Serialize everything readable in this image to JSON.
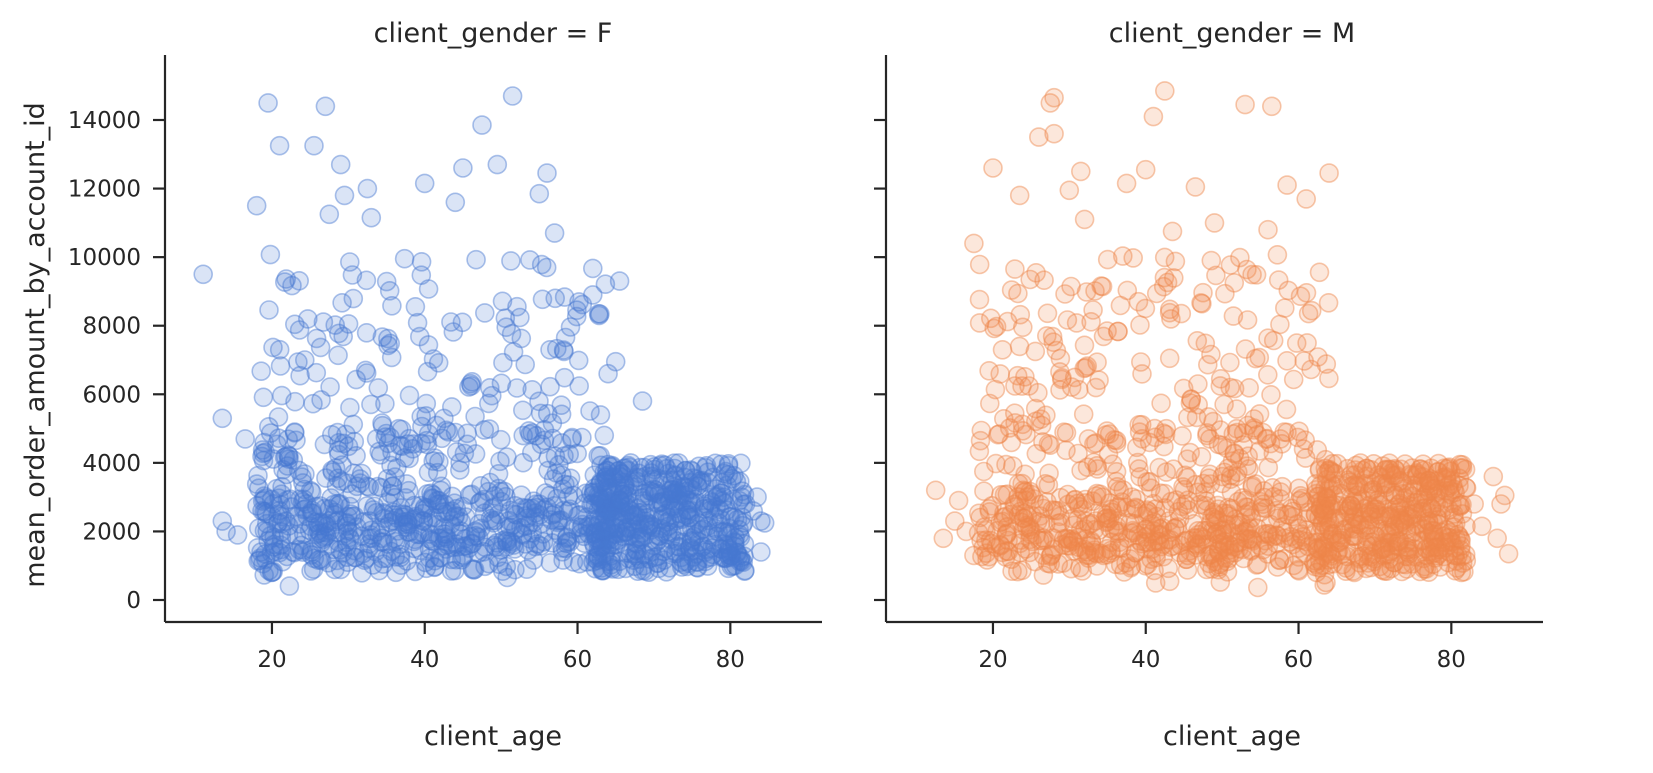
{
  "chart_data": {
    "type": "scatter",
    "xlabel": "client_age",
    "ylabel": "mean_order_amount_by_account_id",
    "xlim": [
      6,
      92
    ],
    "ylim": [
      -600,
      15800
    ],
    "xticks": [
      20,
      40,
      60,
      80
    ],
    "yticks": [
      0,
      2000,
      4000,
      6000,
      8000,
      10000,
      12000,
      14000
    ],
    "facet_variable": "client_gender",
    "panels": [
      {
        "title": "client_gender = F",
        "name": "F",
        "color": "#4878d0",
        "generated_points": 1250,
        "notable_points": [
          [
            11,
            9500
          ],
          [
            19.5,
            14500
          ],
          [
            21,
            13250
          ],
          [
            25.5,
            13250
          ],
          [
            27,
            14400
          ],
          [
            29,
            12700
          ],
          [
            32.5,
            12000
          ],
          [
            33,
            11150
          ],
          [
            29.5,
            11800
          ],
          [
            27.5,
            11250
          ],
          [
            18,
            11500
          ],
          [
            40,
            12150
          ],
          [
            44,
            11600
          ],
          [
            45,
            12600
          ],
          [
            47.5,
            13850
          ],
          [
            49.5,
            12700
          ],
          [
            51.5,
            14700
          ],
          [
            56,
            12450
          ],
          [
            55,
            11850
          ],
          [
            57,
            10700
          ],
          [
            13.5,
            5300
          ],
          [
            13.5,
            2300
          ],
          [
            14,
            2000
          ],
          [
            15.5,
            1900
          ],
          [
            16.5,
            4700
          ],
          [
            63,
            5400
          ],
          [
            63.5,
            4800
          ],
          [
            64,
            6600
          ],
          [
            65,
            6950
          ],
          [
            68.5,
            5800
          ],
          [
            65.5,
            9300
          ],
          [
            62,
            8900
          ],
          [
            84,
            2300
          ],
          [
            84.5,
            2250
          ],
          [
            83.5,
            3000
          ],
          [
            84,
            1400
          ],
          [
            82,
            2800
          ],
          [
            83,
            2600
          ]
        ]
      },
      {
        "title": "client_gender = M",
        "name": "M",
        "color": "#ee854a",
        "generated_points": 1250,
        "notable_points": [
          [
            27.5,
            14500
          ],
          [
            28,
            14650
          ],
          [
            26,
            13500
          ],
          [
            28,
            13600
          ],
          [
            42.5,
            14850
          ],
          [
            41,
            14100
          ],
          [
            53,
            14450
          ],
          [
            56.5,
            14400
          ],
          [
            20,
            12600
          ],
          [
            23.5,
            11800
          ],
          [
            30,
            11950
          ],
          [
            31.5,
            12500
          ],
          [
            37.5,
            12150
          ],
          [
            40,
            12550
          ],
          [
            46.5,
            12050
          ],
          [
            58.5,
            12100
          ],
          [
            61,
            11700
          ],
          [
            64,
            12450
          ],
          [
            32,
            11100
          ],
          [
            43.5,
            10750
          ],
          [
            49,
            11000
          ],
          [
            56,
            10800
          ],
          [
            17.5,
            10400
          ],
          [
            12.5,
            3200
          ],
          [
            13.5,
            1800
          ],
          [
            15,
            2300
          ],
          [
            15.5,
            2900
          ],
          [
            16.5,
            2000
          ],
          [
            17.5,
            1300
          ],
          [
            85.5,
            3600
          ],
          [
            86,
            1800
          ],
          [
            86.5,
            2800
          ],
          [
            87.5,
            1350
          ],
          [
            87,
            3050
          ],
          [
            84,
            2150
          ],
          [
            83,
            2800
          ]
        ]
      }
    ]
  }
}
